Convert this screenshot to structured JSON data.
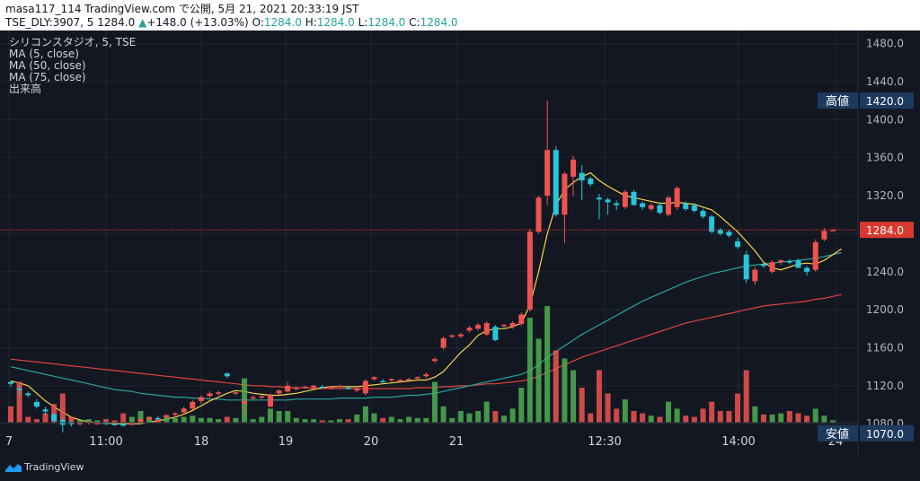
{
  "header": {
    "publish_info": "masa117_114 TradingView.com で公開, 5月 21, 2021 20:33:19 JST",
    "symbol": "TSE_DLY:3907, 5",
    "last": "1284.0",
    "change_arrow": "▲",
    "change": "+148.0 (+13.03%)",
    "o_label": "O:",
    "o": "1284.0",
    "h_label": "H:",
    "h": "1284.0",
    "l_label": "L:",
    "l": "1284.0",
    "c_label": "C:",
    "c": "1284.0"
  },
  "legend": {
    "title": "シリコンスタジオ, 5, TSE",
    "ma5": "MA (5, close)",
    "ma50": "MA (50, close)",
    "ma75": "MA (75, close)",
    "volume": "出来高"
  },
  "footer": {
    "brand": "TradingView"
  },
  "colors": {
    "background": "#131722",
    "up": "#26c6da",
    "down": "#ef5350",
    "vol_up": "#4caf50",
    "vol_down": "#ef5350",
    "ma5": "#f5d34b",
    "ma50": "#26a69a",
    "ma75": "#e0443e",
    "price_tag": "#d93a30",
    "label_tag": "#1e3a5f",
    "grid": "#2a2e39"
  },
  "chart_data": {
    "type": "candlestick",
    "y_axis": {
      "range": [
        1050,
        1490
      ],
      "ticks": [
        1080.0,
        1120.0,
        1160.0,
        1200.0,
        1240.0,
        1280.0,
        1320.0,
        1360.0,
        1400.0,
        1440.0,
        1480.0
      ]
    },
    "x_axis": {
      "labels": [
        "7",
        "11:00",
        "18",
        "19",
        "20",
        "21",
        "12:30",
        "14:00",
        "24"
      ]
    },
    "price_line": 1284.0,
    "annotations": [
      {
        "label": "高値",
        "value": "1420.0"
      },
      {
        "label": "安値",
        "value": "1070.0"
      },
      {
        "label": "",
        "value": "1284.0"
      }
    ],
    "candles": [
      {
        "o": 1124,
        "h": 1125,
        "l": 1119,
        "c": 1122,
        "v": 0.14
      },
      {
        "o": 1117,
        "h": 1120,
        "l": 1110,
        "c": 1116,
        "v": 0.35
      },
      {
        "o": 1112,
        "h": 1114,
        "l": 1108,
        "c": 1110,
        "v": 0.05
      },
      {
        "o": 1103,
        "h": 1106,
        "l": 1096,
        "c": 1098,
        "v": 0.03
      },
      {
        "o": 1095,
        "h": 1098,
        "l": 1090,
        "c": 1093,
        "v": 0.08
      },
      {
        "o": 1090,
        "h": 1091,
        "l": 1080,
        "c": 1083,
        "v": 0.16
      },
      {
        "o": 1084,
        "h": 1086,
        "l": 1071,
        "c": 1079,
        "v": 0.25
      },
      {
        "o": 1081,
        "h": 1083,
        "l": 1077,
        "c": 1080,
        "v": 0.05
      },
      {
        "o": 1080,
        "h": 1082,
        "l": 1078,
        "c": 1081,
        "v": 0.02
      },
      {
        "o": 1081,
        "h": 1083,
        "l": 1079,
        "c": 1082,
        "v": 0.03
      },
      {
        "o": 1081,
        "h": 1082,
        "l": 1079,
        "c": 1081,
        "v": 0.02
      },
      {
        "o": 1081,
        "h": 1082,
        "l": 1079,
        "c": 1080,
        "v": 0.03
      },
      {
        "o": 1080,
        "h": 1081,
        "l": 1078,
        "c": 1079,
        "v": 0.02
      },
      {
        "o": 1080,
        "h": 1082,
        "l": 1077,
        "c": 1078,
        "v": 0.08
      },
      {
        "o": 1079,
        "h": 1082,
        "l": 1078,
        "c": 1081,
        "v": 0.05
      },
      {
        "o": 1082,
        "h": 1086,
        "l": 1080,
        "c": 1085,
        "v": 0.1
      },
      {
        "o": 1085,
        "h": 1088,
        "l": 1083,
        "c": 1087,
        "v": 0.05
      },
      {
        "o": 1086,
        "h": 1088,
        "l": 1084,
        "c": 1085,
        "v": 0.03
      },
      {
        "o": 1087,
        "h": 1090,
        "l": 1085,
        "c": 1089,
        "v": 0.06
      },
      {
        "o": 1090,
        "h": 1092,
        "l": 1087,
        "c": 1091,
        "v": 0.04
      },
      {
        "o": 1092,
        "h": 1098,
        "l": 1090,
        "c": 1096,
        "v": 0.05
      },
      {
        "o": 1096,
        "h": 1105,
        "l": 1094,
        "c": 1103,
        "v": 0.06
      },
      {
        "o": 1104,
        "h": 1110,
        "l": 1101,
        "c": 1108,
        "v": 0.04
      },
      {
        "o": 1109,
        "h": 1114,
        "l": 1107,
        "c": 1112,
        "v": 0.04
      },
      {
        "o": 1112,
        "h": 1115,
        "l": 1110,
        "c": 1113,
        "v": 0.03
      },
      {
        "o": 1133,
        "h": 1134,
        "l": 1128,
        "c": 1130,
        "v": 0.05
      },
      {
        "o": 1112,
        "h": 1114,
        "l": 1110,
        "c": 1113,
        "v": 0.04
      },
      {
        "o": 1101,
        "h": 1108,
        "l": 1090,
        "c": 1104,
        "v": 0.38
      },
      {
        "o": 1107,
        "h": 1110,
        "l": 1105,
        "c": 1108,
        "v": 0.03
      },
      {
        "o": 1108,
        "h": 1110,
        "l": 1106,
        "c": 1109,
        "v": 0.05
      },
      {
        "o": 1098,
        "h": 1112,
        "l": 1097,
        "c": 1110,
        "v": 0.12
      },
      {
        "o": 1112,
        "h": 1116,
        "l": 1110,
        "c": 1115,
        "v": 0.1
      },
      {
        "o": 1114,
        "h": 1124,
        "l": 1113,
        "c": 1120,
        "v": 0.1
      },
      {
        "o": 1117,
        "h": 1119,
        "l": 1115,
        "c": 1118,
        "v": 0.04
      },
      {
        "o": 1118,
        "h": 1120,
        "l": 1117,
        "c": 1119,
        "v": 0.03
      },
      {
        "o": 1118,
        "h": 1121,
        "l": 1117,
        "c": 1120,
        "v": 0.03
      },
      {
        "o": 1119,
        "h": 1121,
        "l": 1117,
        "c": 1118,
        "v": 0.02
      },
      {
        "o": 1118,
        "h": 1120,
        "l": 1116,
        "c": 1119,
        "v": 0.02
      },
      {
        "o": 1119,
        "h": 1121,
        "l": 1117,
        "c": 1120,
        "v": 0.03
      },
      {
        "o": 1118,
        "h": 1119,
        "l": 1116,
        "c": 1117,
        "v": 0.03
      },
      {
        "o": 1115,
        "h": 1118,
        "l": 1113,
        "c": 1117,
        "v": 0.07
      },
      {
        "o": 1112,
        "h": 1127,
        "l": 1110,
        "c": 1125,
        "v": 0.14
      },
      {
        "o": 1127,
        "h": 1130,
        "l": 1125,
        "c": 1129,
        "v": 0.08
      },
      {
        "o": 1125,
        "h": 1127,
        "l": 1123,
        "c": 1124,
        "v": 0.04
      },
      {
        "o": 1126,
        "h": 1128,
        "l": 1124,
        "c": 1127,
        "v": 0.05
      },
      {
        "o": 1125,
        "h": 1127,
        "l": 1123,
        "c": 1126,
        "v": 0.03
      },
      {
        "o": 1126,
        "h": 1128,
        "l": 1124,
        "c": 1127,
        "v": 0.05
      },
      {
        "o": 1128,
        "h": 1130,
        "l": 1126,
        "c": 1129,
        "v": 0.04
      },
      {
        "o": 1130,
        "h": 1134,
        "l": 1128,
        "c": 1132,
        "v": 0.04
      },
      {
        "o": 1146,
        "h": 1150,
        "l": 1144,
        "c": 1148,
        "v": 0.35
      },
      {
        "o": 1160,
        "h": 1172,
        "l": 1158,
        "c": 1170,
        "v": 0.14
      },
      {
        "o": 1172,
        "h": 1174,
        "l": 1170,
        "c": 1173,
        "v": 0.04
      },
      {
        "o": 1172,
        "h": 1176,
        "l": 1170,
        "c": 1174,
        "v": 0.1
      },
      {
        "o": 1178,
        "h": 1183,
        "l": 1176,
        "c": 1181,
        "v": 0.08
      },
      {
        "o": 1180,
        "h": 1186,
        "l": 1178,
        "c": 1184,
        "v": 0.1
      },
      {
        "o": 1174,
        "h": 1188,
        "l": 1172,
        "c": 1186,
        "v": 0.18
      },
      {
        "o": 1182,
        "h": 1184,
        "l": 1167,
        "c": 1168,
        "v": 0.1
      },
      {
        "o": 1183,
        "h": 1185,
        "l": 1181,
        "c": 1184,
        "v": 0.06
      },
      {
        "o": 1182,
        "h": 1188,
        "l": 1180,
        "c": 1186,
        "v": 0.12
      },
      {
        "o": 1185,
        "h": 1197,
        "l": 1183,
        "c": 1195,
        "v": 0.3
      },
      {
        "o": 1200,
        "h": 1285,
        "l": 1198,
        "c": 1282,
        "v": 0.9
      },
      {
        "o": 1282,
        "h": 1320,
        "l": 1280,
        "c": 1318,
        "v": 0.72
      },
      {
        "o": 1320,
        "h": 1420,
        "l": 1310,
        "c": 1368,
        "v": 1.0
      },
      {
        "o": 1368,
        "h": 1372,
        "l": 1298,
        "c": 1300,
        "v": 0.62
      },
      {
        "o": 1300,
        "h": 1345,
        "l": 1270,
        "c": 1343,
        "v": 0.55
      },
      {
        "o": 1340,
        "h": 1362,
        "l": 1320,
        "c": 1358,
        "v": 0.45
      },
      {
        "o": 1344,
        "h": 1352,
        "l": 1315,
        "c": 1336,
        "v": 0.3
      },
      {
        "o": 1338,
        "h": 1340,
        "l": 1330,
        "c": 1332,
        "v": 0.08
      },
      {
        "o": 1318,
        "h": 1322,
        "l": 1295,
        "c": 1316,
        "v": 0.45
      },
      {
        "o": 1316,
        "h": 1318,
        "l": 1300,
        "c": 1313,
        "v": 0.25
      },
      {
        "o": 1312,
        "h": 1315,
        "l": 1305,
        "c": 1310,
        "v": 0.12
      },
      {
        "o": 1308,
        "h": 1326,
        "l": 1306,
        "c": 1324,
        "v": 0.2
      },
      {
        "o": 1324,
        "h": 1326,
        "l": 1310,
        "c": 1310,
        "v": 0.1
      },
      {
        "o": 1312,
        "h": 1314,
        "l": 1305,
        "c": 1308,
        "v": 0.08
      },
      {
        "o": 1306,
        "h": 1312,
        "l": 1304,
        "c": 1310,
        "v": 0.06
      },
      {
        "o": 1310,
        "h": 1312,
        "l": 1300,
        "c": 1302,
        "v": 0.05
      },
      {
        "o": 1300,
        "h": 1320,
        "l": 1298,
        "c": 1318,
        "v": 0.18
      },
      {
        "o": 1308,
        "h": 1330,
        "l": 1305,
        "c": 1328,
        "v": 0.12
      },
      {
        "o": 1312,
        "h": 1314,
        "l": 1304,
        "c": 1306,
        "v": 0.06
      },
      {
        "o": 1310,
        "h": 1312,
        "l": 1302,
        "c": 1304,
        "v": 0.05
      },
      {
        "o": 1304,
        "h": 1306,
        "l": 1296,
        "c": 1298,
        "v": 0.12
      },
      {
        "o": 1298,
        "h": 1300,
        "l": 1280,
        "c": 1282,
        "v": 0.18
      },
      {
        "o": 1284,
        "h": 1286,
        "l": 1278,
        "c": 1280,
        "v": 0.1
      },
      {
        "o": 1282,
        "h": 1284,
        "l": 1276,
        "c": 1278,
        "v": 0.1
      },
      {
        "o": 1272,
        "h": 1276,
        "l": 1264,
        "c": 1266,
        "v": 0.25
      },
      {
        "o": 1258,
        "h": 1262,
        "l": 1228,
        "c": 1232,
        "v": 0.45
      },
      {
        "o": 1230,
        "h": 1245,
        "l": 1226,
        "c": 1242,
        "v": 0.14
      },
      {
        "o": 1248,
        "h": 1250,
        "l": 1244,
        "c": 1246,
        "v": 0.07
      },
      {
        "o": 1240,
        "h": 1252,
        "l": 1238,
        "c": 1250,
        "v": 0.07
      },
      {
        "o": 1250,
        "h": 1253,
        "l": 1247,
        "c": 1252,
        "v": 0.08
      },
      {
        "o": 1251,
        "h": 1253,
        "l": 1248,
        "c": 1250,
        "v": 0.1
      },
      {
        "o": 1252,
        "h": 1254,
        "l": 1248,
        "c": 1244,
        "v": 0.08
      },
      {
        "o": 1244,
        "h": 1246,
        "l": 1236,
        "c": 1240,
        "v": 0.06
      },
      {
        "o": 1242,
        "h": 1274,
        "l": 1240,
        "c": 1271,
        "v": 0.12
      },
      {
        "o": 1274,
        "h": 1286,
        "l": 1272,
        "c": 1283,
        "v": 0.06
      },
      {
        "o": 1284,
        "h": 1285,
        "l": 1283,
        "c": 1284,
        "v": 0.02
      }
    ],
    "ma5": [
      1125,
      1123,
      1120,
      1112,
      1104,
      1098,
      1092,
      1087,
      1084,
      1082,
      1081,
      1081,
      1080,
      1080,
      1080,
      1080,
      1082,
      1083,
      1085,
      1087,
      1090,
      1094,
      1099,
      1104,
      1108,
      1112,
      1115,
      1114,
      1112,
      1111,
      1110,
      1110,
      1111,
      1112,
      1114,
      1116,
      1118,
      1119,
      1119,
      1119,
      1119,
      1120,
      1121,
      1122,
      1123,
      1124,
      1125,
      1126,
      1126,
      1129,
      1135,
      1145,
      1155,
      1163,
      1173,
      1178,
      1180,
      1180,
      1182,
      1186,
      1205,
      1240,
      1280,
      1310,
      1326,
      1334,
      1340,
      1344,
      1336,
      1330,
      1325,
      1320,
      1318,
      1316,
      1314,
      1312,
      1312,
      1313,
      1312,
      1311,
      1308,
      1305,
      1298,
      1290,
      1282,
      1272,
      1262,
      1250,
      1244,
      1242,
      1245,
      1248,
      1249,
      1248,
      1252,
      1258,
      1264
    ],
    "ma50": [
      1140,
      1138,
      1136,
      1134,
      1132,
      1130,
      1128,
      1126,
      1124,
      1122,
      1120,
      1118,
      1116,
      1115,
      1114,
      1112,
      1111,
      1110,
      1109,
      1108,
      1108,
      1107,
      1107,
      1106,
      1106,
      1105,
      1105,
      1105,
      1105,
      1105,
      1105,
      1105,
      1105,
      1106,
      1106,
      1106,
      1106,
      1106,
      1107,
      1107,
      1107,
      1107,
      1108,
      1108,
      1108,
      1109,
      1110,
      1110,
      1111,
      1112,
      1114,
      1116,
      1118,
      1120,
      1122,
      1124,
      1126,
      1128,
      1130,
      1132,
      1136,
      1142,
      1150,
      1156,
      1162,
      1168,
      1174,
      1179,
      1184,
      1189,
      1194,
      1199,
      1204,
      1209,
      1213,
      1217,
      1221,
      1225,
      1229,
      1232,
      1235,
      1238,
      1240,
      1242,
      1244,
      1246,
      1247,
      1248,
      1249,
      1250,
      1251,
      1252,
      1253,
      1254,
      1256,
      1258,
      1260
    ],
    "ma75": [
      1148,
      1147,
      1146,
      1145,
      1144,
      1143,
      1142,
      1141,
      1140,
      1139,
      1138,
      1137,
      1136,
      1135,
      1134,
      1133,
      1132,
      1131,
      1130,
      1129,
      1128,
      1127,
      1126,
      1125,
      1124,
      1123,
      1122,
      1121,
      1120,
      1120,
      1119,
      1119,
      1118,
      1118,
      1118,
      1117,
      1117,
      1117,
      1117,
      1117,
      1117,
      1117,
      1117,
      1117,
      1117,
      1117,
      1117,
      1118,
      1118,
      1118,
      1119,
      1119,
      1120,
      1120,
      1121,
      1122,
      1122,
      1123,
      1124,
      1125,
      1127,
      1130,
      1134,
      1138,
      1142,
      1146,
      1150,
      1153,
      1156,
      1159,
      1162,
      1165,
      1168,
      1171,
      1174,
      1177,
      1180,
      1183,
      1186,
      1188,
      1190,
      1192,
      1194,
      1196,
      1198,
      1200,
      1202,
      1204,
      1205,
      1206,
      1207,
      1208,
      1209,
      1211,
      1212,
      1214,
      1216
    ]
  }
}
